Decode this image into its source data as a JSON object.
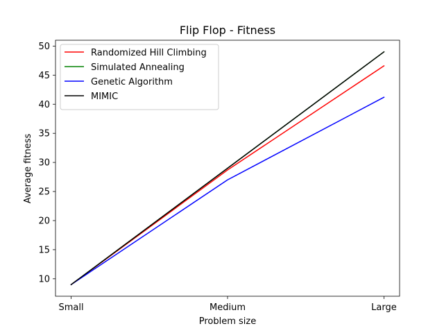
{
  "chart_data": {
    "type": "line",
    "title": "Flip Flop - Fitness",
    "xlabel": "Problem size",
    "ylabel": "Average fitness",
    "categories": [
      "Small",
      "Medium",
      "Large"
    ],
    "ylim": [
      7.0,
      51.0
    ],
    "yticks": [
      10,
      15,
      20,
      25,
      30,
      35,
      40,
      45,
      50
    ],
    "grid": false,
    "legend_position": "top-left",
    "series": [
      {
        "name": "Randomized Hill Climbing",
        "color": "#ff0000",
        "values": [
          9.0,
          28.7,
          46.6
        ]
      },
      {
        "name": "Simulated Annealing",
        "color": "#008000",
        "values": [
          9.0,
          29.0,
          49.0
        ]
      },
      {
        "name": "Genetic Algorithm",
        "color": "#0000ff",
        "values": [
          9.0,
          27.0,
          41.2
        ]
      },
      {
        "name": "MIMIC",
        "color": "#000000",
        "values": [
          9.0,
          29.0,
          49.0
        ]
      }
    ]
  }
}
